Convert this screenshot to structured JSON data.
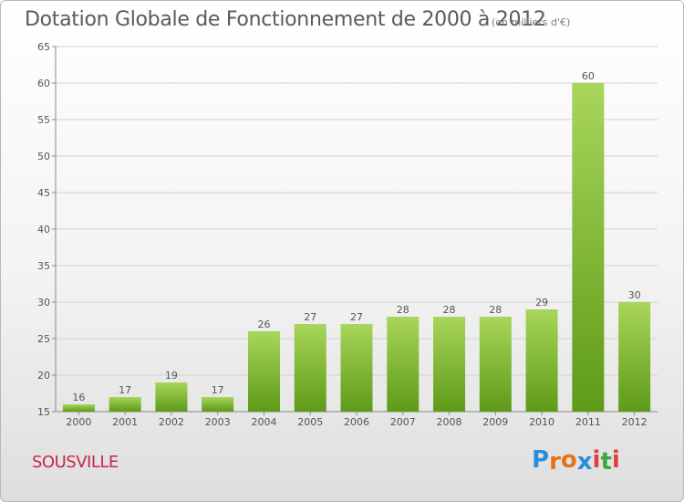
{
  "header": {
    "title": "Dotation Globale de Fonctionnement de 2000 à 2012",
    "subtitle": "(en milliers d'€)"
  },
  "footer": {
    "place": "SOUSVILLE",
    "brand": [
      "P",
      "r",
      "o",
      "x",
      "i",
      "t",
      "i"
    ]
  },
  "colors": {
    "bar_light": "#a8d65a",
    "bar_dark": "#5e9a18",
    "grid": "#d2d2d2",
    "place": "#c8264a",
    "brand": [
      "#2a8fd6",
      "#e8711c",
      "#e8711c",
      "#2a8fd6",
      "#e23e3e",
      "#3aa83a",
      "#e23e3e"
    ]
  },
  "chart_data": {
    "type": "bar",
    "title": "Dotation Globale de Fonctionnement de 2000 à 2012",
    "subtitle": "(en milliers d'€)",
    "categories": [
      "2000",
      "2001",
      "2002",
      "2003",
      "2004",
      "2005",
      "2006",
      "2007",
      "2008",
      "2009",
      "2010",
      "2011",
      "2012"
    ],
    "values": [
      16,
      17,
      19,
      17,
      26,
      27,
      27,
      28,
      28,
      28,
      29,
      60,
      30
    ],
    "ylim": [
      15,
      65
    ],
    "yticks": [
      15,
      20,
      25,
      30,
      35,
      40,
      45,
      50,
      55,
      60,
      65
    ],
    "grid": "horizontal",
    "data_labels": true
  }
}
